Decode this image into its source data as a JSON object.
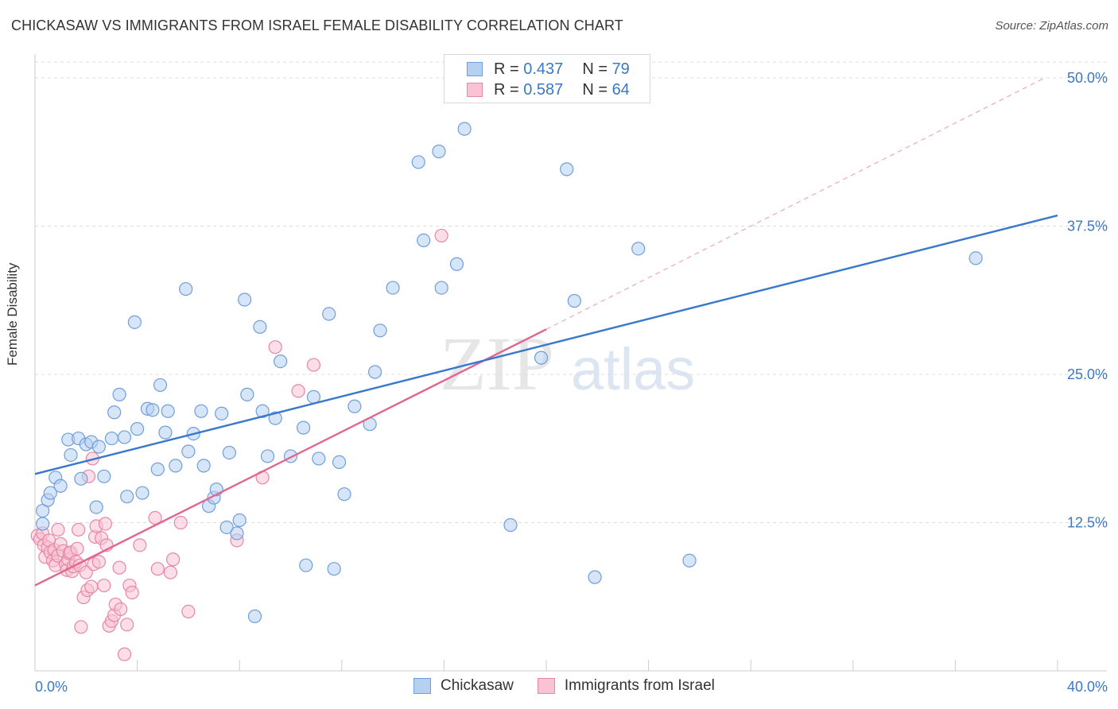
{
  "title": "CHICKASAW VS IMMIGRANTS FROM ISRAEL FEMALE DISABILITY CORRELATION CHART",
  "source": "Source: ZipAtlas.com",
  "watermark_zip": "ZIP",
  "watermark_atlas": "atlas",
  "legend": {
    "r_label": "R = ",
    "n_label": "N = ",
    "entries": [
      {
        "name": "Chickasaw",
        "r": "0.437",
        "n": "79",
        "fill": "#b6d0f2",
        "stroke": "#6f9fd8"
      },
      {
        "name": "Immigrants from Israel",
        "r": "0.587",
        "n": "64",
        "fill": "#f8c3d3",
        "stroke": "#e687a6"
      }
    ]
  },
  "chart_data": {
    "type": "scatter",
    "title": "CHICKASAW VS IMMIGRANTS FROM ISRAEL FEMALE DISABILITY CORRELATION CHART",
    "xlabel": "",
    "ylabel": "Female Disability",
    "xlim": [
      0,
      40
    ],
    "ylim": [
      0,
      50
    ],
    "x_tick_labels": [
      "0.0%",
      "40.0%"
    ],
    "y_ticks": [
      12.5,
      25.0,
      37.5,
      50.0
    ],
    "y_tick_labels": [
      "12.5%",
      "25.0%",
      "37.5%",
      "50.0%"
    ],
    "grid": "horizontal dashed",
    "series": [
      {
        "name": "Chickasaw",
        "color": "#3a77cf",
        "trend": {
          "x0": 0,
          "y0": 16.6,
          "x1": 40,
          "y1": 38.4
        },
        "points": [
          [
            0.3,
            12.4
          ],
          [
            0.3,
            13.5
          ],
          [
            0.5,
            14.4
          ],
          [
            0.6,
            15.0
          ],
          [
            0.8,
            16.3
          ],
          [
            1.0,
            15.6
          ],
          [
            1.3,
            19.5
          ],
          [
            1.4,
            18.2
          ],
          [
            1.7,
            19.6
          ],
          [
            1.8,
            16.2
          ],
          [
            2.0,
            19.1
          ],
          [
            2.2,
            19.3
          ],
          [
            2.4,
            13.8
          ],
          [
            2.5,
            18.9
          ],
          [
            2.7,
            16.4
          ],
          [
            3.0,
            19.6
          ],
          [
            3.1,
            21.8
          ],
          [
            3.3,
            23.3
          ],
          [
            3.5,
            19.7
          ],
          [
            3.6,
            14.7
          ],
          [
            3.9,
            29.4
          ],
          [
            4.0,
            20.4
          ],
          [
            4.2,
            15.0
          ],
          [
            4.4,
            22.1
          ],
          [
            4.6,
            22.0
          ],
          [
            4.8,
            17.0
          ],
          [
            4.9,
            24.1
          ],
          [
            5.1,
            20.1
          ],
          [
            5.2,
            21.9
          ],
          [
            5.5,
            17.3
          ],
          [
            5.9,
            32.2
          ],
          [
            6.0,
            18.5
          ],
          [
            6.2,
            20.0
          ],
          [
            6.5,
            21.9
          ],
          [
            6.6,
            17.3
          ],
          [
            6.8,
            13.9
          ],
          [
            7.0,
            14.6
          ],
          [
            7.1,
            15.3
          ],
          [
            7.3,
            21.7
          ],
          [
            7.5,
            12.1
          ],
          [
            7.6,
            18.4
          ],
          [
            7.9,
            11.6
          ],
          [
            8.0,
            12.7
          ],
          [
            8.2,
            31.3
          ],
          [
            8.3,
            23.3
          ],
          [
            8.6,
            4.6
          ],
          [
            8.8,
            29.0
          ],
          [
            8.9,
            21.9
          ],
          [
            9.1,
            18.1
          ],
          [
            9.4,
            21.3
          ],
          [
            9.6,
            26.1
          ],
          [
            10.0,
            18.1
          ],
          [
            10.5,
            20.5
          ],
          [
            10.6,
            8.9
          ],
          [
            10.9,
            23.1
          ],
          [
            11.1,
            17.9
          ],
          [
            11.5,
            30.1
          ],
          [
            11.7,
            8.6
          ],
          [
            11.9,
            17.6
          ],
          [
            12.1,
            14.9
          ],
          [
            12.5,
            22.3
          ],
          [
            13.1,
            20.8
          ],
          [
            13.3,
            25.2
          ],
          [
            13.5,
            28.7
          ],
          [
            14.0,
            32.3
          ],
          [
            15.0,
            42.9
          ],
          [
            15.2,
            36.3
          ],
          [
            15.8,
            43.8
          ],
          [
            15.9,
            32.3
          ],
          [
            16.5,
            34.3
          ],
          [
            16.8,
            45.7
          ],
          [
            18.6,
            12.3
          ],
          [
            19.8,
            26.4
          ],
          [
            20.8,
            42.3
          ],
          [
            21.1,
            31.2
          ],
          [
            21.9,
            7.9
          ],
          [
            23.6,
            35.6
          ],
          [
            25.6,
            9.3
          ],
          [
            36.8,
            34.8
          ]
        ]
      },
      {
        "name": "Immigrants from Israel",
        "color": "#e2668f",
        "trend": {
          "x0": 0,
          "y0": 7.2,
          "x1": 20,
          "y1": 28.8,
          "dash_x1": 39.5,
          "dash_y1": 50.0
        },
        "points": [
          [
            0.1,
            11.4
          ],
          [
            0.2,
            11.1
          ],
          [
            0.3,
            11.6
          ],
          [
            0.35,
            10.6
          ],
          [
            0.4,
            9.6
          ],
          [
            0.5,
            10.4
          ],
          [
            0.55,
            11.0
          ],
          [
            0.6,
            10.0
          ],
          [
            0.7,
            9.3
          ],
          [
            0.75,
            10.2
          ],
          [
            0.8,
            8.9
          ],
          [
            0.9,
            9.7
          ],
          [
            0.9,
            11.9
          ],
          [
            1.0,
            10.7
          ],
          [
            1.1,
            10.1
          ],
          [
            1.2,
            9.0
          ],
          [
            1.25,
            8.5
          ],
          [
            1.3,
            9.4
          ],
          [
            1.35,
            9.9
          ],
          [
            1.4,
            10.0
          ],
          [
            1.45,
            8.4
          ],
          [
            1.5,
            8.8
          ],
          [
            1.6,
            9.2
          ],
          [
            1.65,
            10.3
          ],
          [
            1.7,
            11.9
          ],
          [
            1.75,
            8.9
          ],
          [
            1.8,
            3.7
          ],
          [
            1.9,
            6.2
          ],
          [
            2.0,
            8.3
          ],
          [
            2.05,
            6.8
          ],
          [
            2.1,
            16.4
          ],
          [
            2.2,
            7.1
          ],
          [
            2.25,
            17.9
          ],
          [
            2.3,
            9.0
          ],
          [
            2.35,
            11.3
          ],
          [
            2.4,
            12.2
          ],
          [
            2.5,
            9.2
          ],
          [
            2.6,
            11.2
          ],
          [
            2.7,
            7.2
          ],
          [
            2.75,
            12.4
          ],
          [
            2.8,
            10.6
          ],
          [
            2.9,
            3.8
          ],
          [
            3.0,
            4.2
          ],
          [
            3.1,
            4.7
          ],
          [
            3.15,
            5.6
          ],
          [
            3.3,
            8.7
          ],
          [
            3.35,
            5.2
          ],
          [
            3.5,
            1.4
          ],
          [
            3.6,
            3.9
          ],
          [
            3.7,
            7.2
          ],
          [
            3.8,
            6.6
          ],
          [
            4.1,
            10.6
          ],
          [
            4.7,
            12.9
          ],
          [
            4.8,
            8.6
          ],
          [
            5.3,
            8.3
          ],
          [
            5.4,
            9.4
          ],
          [
            5.7,
            12.5
          ],
          [
            6.0,
            5.0
          ],
          [
            7.9,
            11.0
          ],
          [
            8.9,
            16.3
          ],
          [
            9.4,
            27.3
          ],
          [
            10.3,
            23.6
          ],
          [
            10.9,
            25.8
          ],
          [
            15.9,
            36.7
          ]
        ]
      }
    ]
  }
}
